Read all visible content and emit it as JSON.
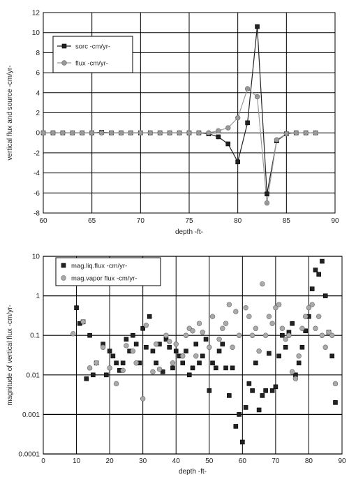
{
  "chart_data": [
    {
      "type": "line",
      "xlabel": "depth -ft-",
      "ylabel": "vertical flux and source -cm/yr-",
      "xlim": [
        60,
        90
      ],
      "ylim": [
        -8,
        12
      ],
      "xticks": [
        60,
        65,
        70,
        75,
        80,
        85,
        90
      ],
      "yticks": [
        -8,
        -6,
        -4,
        -2,
        0,
        2,
        4,
        6,
        8,
        10,
        12
      ],
      "grid": true,
      "legend_position": "top-left",
      "series": [
        {
          "name": "sorc -cm/yr-",
          "marker": "square",
          "color": "#222222",
          "x": [
            60,
            61,
            62,
            63,
            64,
            65,
            66,
            67,
            68,
            69,
            70,
            71,
            72,
            73,
            74,
            75,
            76,
            77,
            78,
            79,
            80,
            81,
            82,
            83,
            84,
            85,
            86,
            87,
            88
          ],
          "y": [
            0,
            0,
            0,
            0,
            0,
            0,
            0.05,
            0,
            0,
            0,
            0,
            0,
            0,
            0,
            0,
            0,
            0,
            -0.1,
            -0.4,
            -1.1,
            -2.9,
            1.0,
            10.6,
            -6.1,
            -0.8,
            -0.1,
            0,
            0,
            0
          ]
        },
        {
          "name": "flux -cm/yr-",
          "marker": "circle",
          "color": "#999999",
          "x": [
            60,
            61,
            62,
            63,
            64,
            65,
            66,
            67,
            68,
            69,
            70,
            71,
            72,
            73,
            74,
            75,
            76,
            77,
            78,
            79,
            80,
            81,
            82,
            83,
            84,
            85,
            86,
            87,
            88
          ],
          "y": [
            0,
            0,
            0,
            0,
            0,
            0,
            0,
            0,
            0,
            0,
            0,
            0,
            0,
            0,
            0,
            0,
            0,
            0,
            0.2,
            0.5,
            1.5,
            4.4,
            3.6,
            -7.0,
            -0.7,
            -0.1,
            0,
            0,
            0
          ]
        }
      ]
    },
    {
      "type": "scatter",
      "xlabel": "depth -ft-",
      "ylabel": "magnitude of vertical flux -cm/yr-",
      "xlim": [
        0,
        90
      ],
      "ylim": [
        0.0001,
        10
      ],
      "yscale": "log",
      "xticks": [
        0,
        10,
        20,
        30,
        40,
        50,
        60,
        70,
        80,
        90
      ],
      "ytick_labels": [
        "0.0001",
        "0.001",
        "0.01",
        "0.1",
        "1",
        "10"
      ],
      "grid": true,
      "legend_position": "top-left",
      "series": [
        {
          "name": "mag.liq.flux -cm/yr-",
          "marker": "square",
          "color": "#222222",
          "x": [
            10,
            11,
            12,
            13,
            14,
            15,
            16,
            18,
            19,
            20,
            21,
            22,
            23,
            24,
            25,
            26,
            27,
            28,
            29,
            30,
            31,
            32,
            33,
            34,
            35,
            36,
            37,
            38,
            39,
            40,
            41,
            42,
            43,
            44,
            45,
            46,
            47,
            48,
            49,
            50,
            51,
            52,
            53,
            54,
            55,
            56,
            57,
            58,
            59,
            60,
            61,
            62,
            63,
            64,
            65,
            66,
            67,
            68,
            69,
            70,
            71,
            72,
            73,
            74,
            75,
            76,
            77,
            78,
            79,
            80,
            81,
            82,
            83,
            84,
            85,
            86,
            87,
            88
          ],
          "y": [
            0.5,
            0.2,
            0.22,
            0.008,
            0.1,
            0.01,
            0.02,
            0.06,
            0.01,
            0.04,
            0.03,
            0.02,
            0.013,
            0.02,
            0.08,
            0.04,
            0.1,
            0.06,
            0.02,
            0.15,
            0.05,
            0.3,
            0.04,
            0.02,
            0.06,
            0.012,
            0.08,
            0.05,
            0.015,
            0.04,
            0.03,
            0.02,
            0.04,
            0.01,
            0.015,
            0.06,
            0.02,
            0.03,
            0.08,
            0.004,
            0.02,
            0.015,
            0.04,
            0.06,
            0.015,
            0.003,
            0.015,
            0.0005,
            0.001,
            0.0002,
            0.0015,
            0.006,
            0.004,
            0.02,
            0.0013,
            0.003,
            0.004,
            0.035,
            0.004,
            0.005,
            0.03,
            0.1,
            0.05,
            0.12,
            0.2,
            0.01,
            0.02,
            0.05,
            0.13,
            0.3,
            1.5,
            4.5,
            3.5,
            7.5,
            1.0,
            0.12,
            0.03,
            0.002
          ]
        },
        {
          "name": "mag.vapor flux -cm/yr-",
          "marker": "circle",
          "color": "#aaaaaa",
          "x": [
            9,
            12,
            14,
            16,
            18,
            20,
            22,
            24,
            25,
            27,
            28,
            30,
            31,
            33,
            34,
            35,
            37,
            38,
            39,
            40,
            42,
            43,
            44,
            45,
            46,
            47,
            48,
            50,
            51,
            53,
            54,
            55,
            56,
            57,
            58,
            59,
            61,
            62,
            63,
            64,
            65,
            66,
            67,
            68,
            69,
            70,
            71,
            72,
            73,
            74,
            75,
            76,
            77,
            78,
            79,
            80,
            81,
            82,
            83,
            84,
            85,
            86,
            87,
            88
          ],
          "y": [
            0.11,
            0.22,
            0.015,
            0.02,
            0.05,
            0.015,
            0.006,
            0.013,
            0.055,
            0.04,
            0.02,
            0.0025,
            0.18,
            0.012,
            0.06,
            0.014,
            0.1,
            0.07,
            0.02,
            0.06,
            0.03,
            0.1,
            0.15,
            0.13,
            0.03,
            0.2,
            0.12,
            0.05,
            0.3,
            0.08,
            0.15,
            0.2,
            0.6,
            0.05,
            0.4,
            0.1,
            0.5,
            0.3,
            0.1,
            0.15,
            0.04,
            2.0,
            0.1,
            0.3,
            0.2,
            0.5,
            0.6,
            0.15,
            0.08,
            0.1,
            0.012,
            0.008,
            0.03,
            0.15,
            0.3,
            0.5,
            0.6,
            0.15,
            0.3,
            0.1,
            0.05,
            0.12,
            0.1,
            0.006
          ]
        }
      ]
    }
  ]
}
